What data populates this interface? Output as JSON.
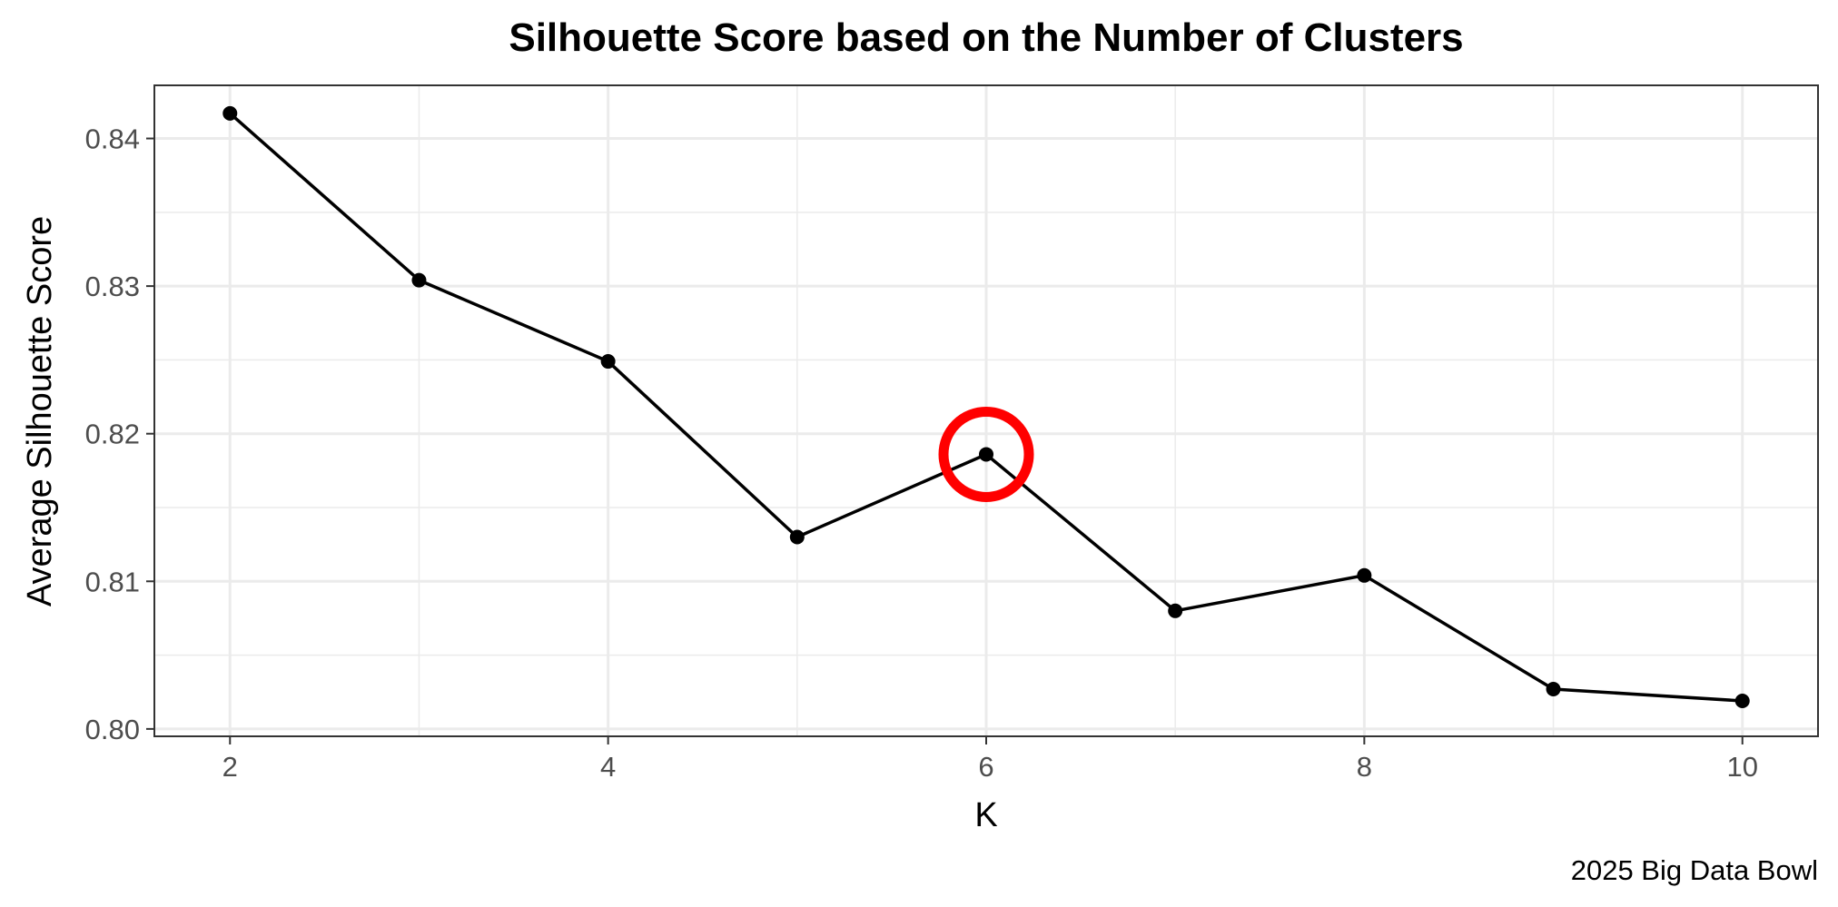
{
  "chart_data": {
    "type": "line",
    "title": "Silhouette Score based on the Number of Clusters",
    "xlabel": "K",
    "ylabel": "Average Silhouette Score",
    "caption": "2025 Big Data Bowl",
    "x": [
      2,
      3,
      4,
      5,
      6,
      7,
      8,
      9,
      10
    ],
    "y": [
      0.8417,
      0.8304,
      0.8249,
      0.813,
      0.8186,
      0.808,
      0.8104,
      0.8027,
      0.8019
    ],
    "xlim": [
      1.6,
      10.4
    ],
    "ylim": [
      0.7995,
      0.8436
    ],
    "x_ticks": [
      2,
      4,
      6,
      8,
      10
    ],
    "x_tick_labels": [
      "2",
      "4",
      "6",
      "8",
      "10"
    ],
    "x_minor_ticks": [
      3,
      5,
      7,
      9
    ],
    "y_ticks": [
      0.8,
      0.81,
      0.82,
      0.83,
      0.84
    ],
    "y_tick_labels": [
      "0.80",
      "0.81",
      "0.82",
      "0.83",
      "0.84"
    ],
    "y_minor_ticks": [
      0.805,
      0.815,
      0.825,
      0.835
    ],
    "grid": true,
    "highlight": {
      "x": 6,
      "y": 0.8186,
      "shape": "circle"
    },
    "colors": {
      "line": "#000000",
      "point": "#000000",
      "highlight": "#ff0000",
      "grid": "#ebebeb",
      "panel_border": "#333333",
      "tick_label": "#4d4d4d"
    }
  }
}
